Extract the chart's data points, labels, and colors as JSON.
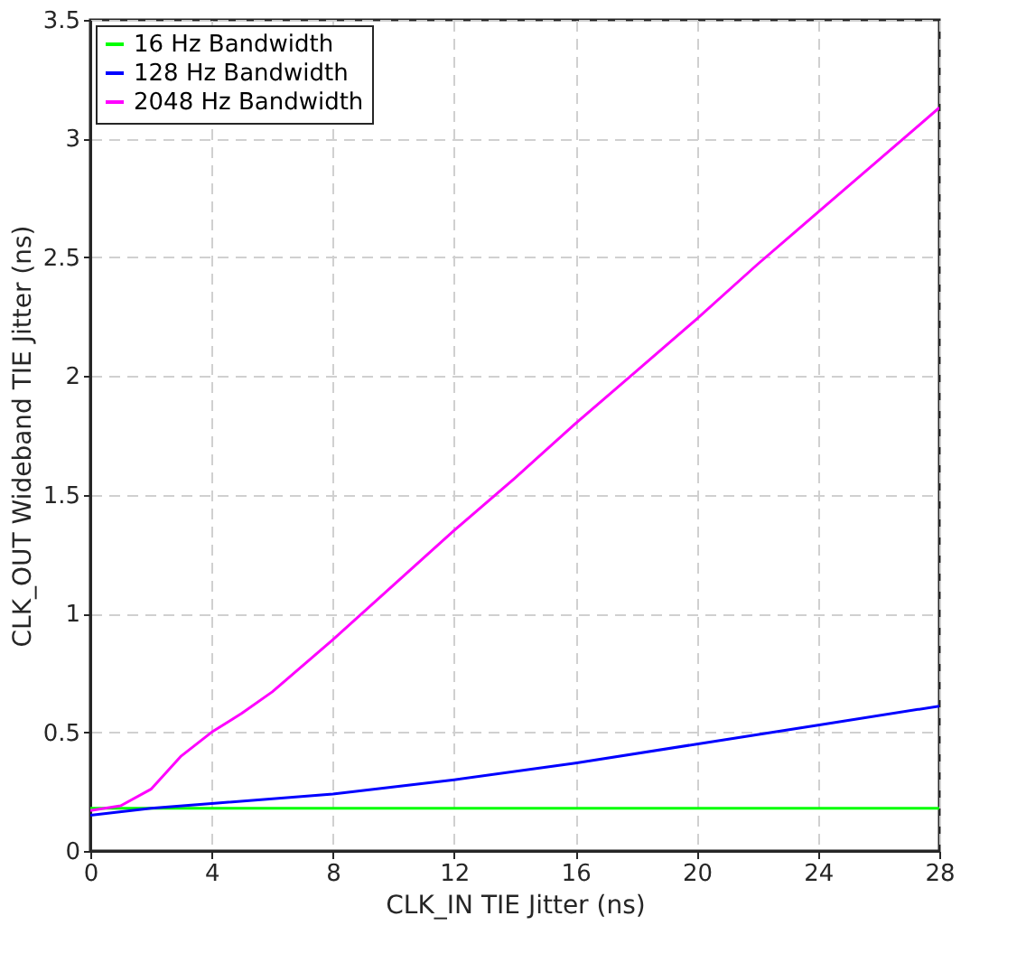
{
  "chart_data": {
    "type": "line",
    "xlabel": "CLK_IN TIE Jitter (ns)",
    "ylabel": "CLK_OUT Wideband TIE Jitter (ns)",
    "xlim": [
      0,
      28
    ],
    "xticks": [
      0,
      4,
      8,
      12,
      16,
      20,
      24,
      28
    ],
    "ylim": [
      0,
      3.5
    ],
    "yticks": [
      0,
      0.5,
      1,
      1.5,
      2,
      2.5,
      3,
      3.5
    ],
    "grid": true,
    "legend": "top left",
    "line_style": "solid",
    "marker": "none",
    "series": [
      {
        "name": "16 Hz Bandwidth",
        "color": "#00ff00",
        "x": [
          0,
          4,
          8,
          12,
          16,
          20,
          24,
          28
        ],
        "values": [
          0.18,
          0.18,
          0.18,
          0.18,
          0.18,
          0.18,
          0.18,
          0.18
        ]
      },
      {
        "name": "128 Hz Bandwidth",
        "color": "#0000ff",
        "x": [
          0,
          2,
          4,
          8,
          12,
          16,
          20,
          24,
          28
        ],
        "values": [
          0.15,
          0.18,
          0.2,
          0.24,
          0.3,
          0.37,
          0.45,
          0.53,
          0.61
        ]
      },
      {
        "name": "2048 Hz Bandwidth",
        "color": "#ff00ff",
        "x": [
          0,
          1,
          2,
          3,
          4,
          5,
          6,
          8,
          10,
          12,
          14,
          16,
          18,
          20,
          22,
          24,
          26,
          28
        ],
        "values": [
          0.17,
          0.19,
          0.26,
          0.4,
          0.5,
          0.58,
          0.67,
          0.89,
          1.12,
          1.35,
          1.57,
          1.8,
          2.02,
          2.24,
          2.47,
          2.69,
          2.91,
          3.13
        ]
      }
    ]
  }
}
